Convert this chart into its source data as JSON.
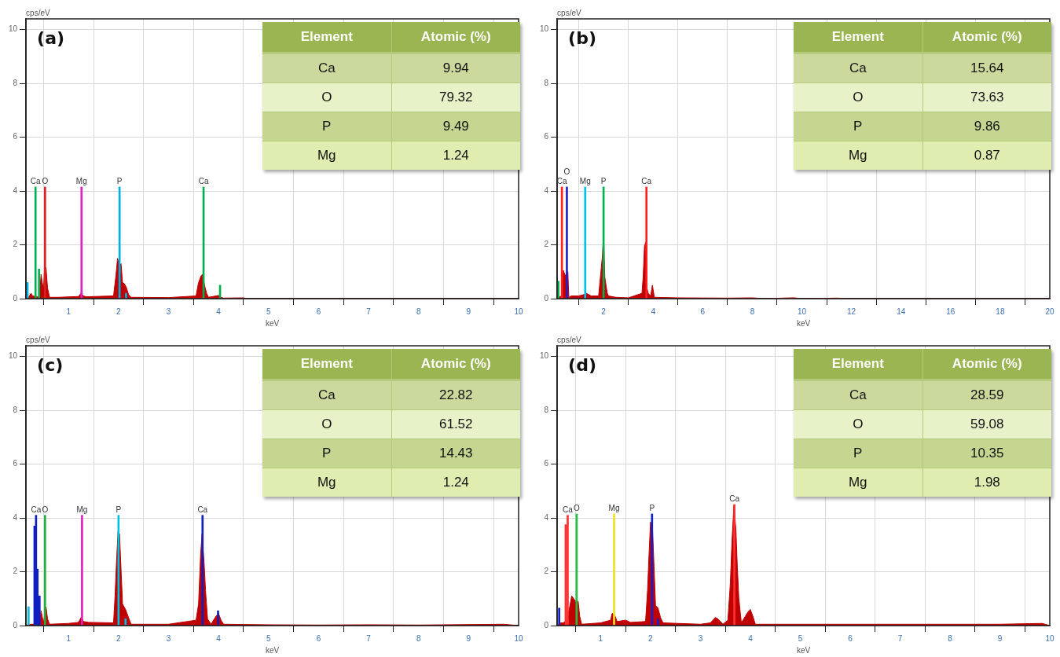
{
  "chart_data": [
    {
      "type": "area",
      "title": "(a)",
      "xlabel": "keV",
      "ylabel": "cps/eV",
      "xlim": [
        0.15,
        10
      ],
      "ylim": [
        0,
        10.4
      ],
      "xticks": [
        1,
        2,
        3,
        4,
        5,
        6,
        7,
        8,
        9,
        10
      ],
      "yticks": [
        0,
        2,
        4,
        6,
        8,
        10
      ],
      "grid": true,
      "annotations": [
        "Element",
        "Atomic (%)",
        "Ca",
        "9.94",
        "O",
        "79.32",
        "P",
        "9.49",
        "Mg",
        "1.24"
      ],
      "series": [
        {
          "color": "#c00000",
          "x": [
            0.15,
            0.2,
            0.25,
            0.28,
            0.42,
            0.45,
            0.5,
            0.52,
            0.55,
            0.58,
            0.62,
            0.8,
            1.2,
            1.25,
            1.3,
            1.35,
            1.9,
            1.95,
            1.98,
            2.02,
            2.05,
            2.08,
            2.12,
            2.16,
            2.2,
            2.25,
            3.0,
            3.55,
            3.6,
            3.65,
            3.68,
            3.72,
            3.76,
            3.8,
            3.95,
            4.0,
            4.05,
            4.1,
            4.5,
            4.55,
            5,
            10
          ],
          "values": [
            0,
            0.05,
            0.2,
            0.1,
            0.05,
            0.9,
            0.3,
            1.15,
            1.15,
            0.4,
            0.05,
            0.05,
            0.08,
            0.2,
            0.1,
            0.07,
            0.1,
            0.9,
            1.5,
            1.2,
            1.3,
            0.6,
            0.55,
            0.4,
            0.15,
            0.05,
            0.04,
            0.1,
            0.6,
            0.85,
            0.9,
            0.5,
            0.2,
            0.05,
            0.1,
            0.12,
            0.05,
            0.02,
            0.03,
            0,
            0,
            0
          ]
        },
        {
          "type": "bar",
          "name": "Ca",
          "color": "#00b050",
          "x": [
            0.34
          ],
          "values": [
            4.15
          ]
        },
        {
          "type": "bar",
          "name": "O",
          "color": "#e02020",
          "x": [
            0.53
          ],
          "values": [
            4.15
          ]
        },
        {
          "type": "bar",
          "name": "Mg",
          "color": "#e020c0",
          "x": [
            1.26
          ],
          "values": [
            4.15
          ]
        },
        {
          "type": "bar",
          "name": "P",
          "color": "#00b0e0",
          "x": [
            2.02
          ],
          "values": [
            4.15
          ]
        },
        {
          "type": "bar",
          "name": "Ca",
          "color": "#00b050",
          "x": [
            3.7
          ],
          "values": [
            4.15
          ]
        },
        {
          "type": "bar",
          "color": "#00b050",
          "x": [
            0.41,
            4.03
          ],
          "values": [
            1.1,
            0.5
          ]
        },
        {
          "type": "bar",
          "color": "#00b0e0",
          "x": [
            0.18,
            2.15
          ],
          "values": [
            0.6,
            0.2
          ]
        }
      ]
    },
    {
      "type": "area",
      "title": "(b)",
      "xlabel": "keV",
      "ylabel": "cps/eV",
      "xlim": [
        0.13,
        20
      ],
      "ylim": [
        0,
        10.4
      ],
      "xticks": [
        2,
        4,
        6,
        8,
        10,
        12,
        14,
        16,
        18,
        20
      ],
      "yticks": [
        0,
        2,
        4,
        6,
        8,
        10
      ],
      "grid": true,
      "annotations": [
        "Element",
        "Atomic (%)",
        "Ca",
        "15.64",
        "O",
        "73.63",
        "P",
        "9.86",
        "Mg",
        "0.87"
      ],
      "series": [
        {
          "color": "#c00000",
          "x": [
            0.13,
            0.2,
            0.3,
            0.38,
            0.45,
            0.56,
            0.6,
            0.7,
            1.0,
            1.2,
            1.3,
            1.5,
            1.8,
            1.95,
            2.0,
            2.05,
            2.1,
            2.15,
            2.2,
            2.5,
            3.0,
            3.55,
            3.6,
            3.65,
            3.7,
            3.75,
            3.8,
            3.9,
            3.97,
            4.05,
            5,
            7,
            8,
            8.5,
            9.6,
            9.7,
            10,
            11.4,
            12,
            20
          ],
          "values": [
            0,
            0.05,
            0.1,
            1.05,
            0.85,
            1.0,
            0.05,
            0.1,
            0.1,
            0.15,
            0.2,
            0.1,
            0.1,
            1.55,
            2.35,
            0.8,
            0.5,
            0.2,
            0.1,
            0.05,
            0.03,
            0.2,
            0.85,
            1.95,
            2.1,
            0.4,
            0.2,
            0.1,
            0.5,
            0.05,
            0.03,
            0.02,
            0.03,
            0,
            0.03,
            0.03,
            0,
            0.02,
            0,
            0
          ]
        },
        {
          "type": "bar",
          "name": "Ca",
          "color": "#ff2020",
          "x": [
            0.32
          ],
          "values": [
            4.15
          ]
        },
        {
          "type": "bar",
          "name": "O",
          "color": "#2020d0",
          "x": [
            0.52
          ],
          "values": [
            4.15
          ]
        },
        {
          "type": "bar",
          "name": "Mg",
          "color": "#00c0e0",
          "x": [
            1.26
          ],
          "values": [
            4.15
          ]
        },
        {
          "type": "bar",
          "name": "P",
          "color": "#00b050",
          "x": [
            2.0
          ],
          "values": [
            4.15
          ]
        },
        {
          "type": "bar",
          "name": "Ca",
          "color": "#ff2020",
          "x": [
            3.73
          ],
          "values": [
            4.15
          ]
        },
        {
          "type": "bar",
          "color": "#00b050",
          "x": [
            0.18
          ],
          "values": [
            0.65
          ]
        }
      ]
    },
    {
      "type": "area",
      "title": "(c)",
      "xlabel": "keV",
      "ylabel": "cps/eV",
      "xlim": [
        0.15,
        10
      ],
      "ylim": [
        0,
        10.4
      ],
      "xticks": [
        1,
        2,
        3,
        4,
        5,
        6,
        7,
        8,
        9,
        10
      ],
      "yticks": [
        0,
        2,
        4,
        6,
        8,
        10
      ],
      "grid": true,
      "annotations": [
        "Element",
        "Atomic (%)",
        "Ca",
        "22.82",
        "O",
        "61.52",
        "P",
        "14.43",
        "Mg",
        "1.24"
      ],
      "series": [
        {
          "color": "#c00000",
          "x": [
            0.15,
            0.25,
            0.42,
            0.45,
            0.5,
            0.55,
            0.58,
            0.62,
            1.0,
            1.2,
            1.25,
            1.3,
            1.4,
            1.9,
            1.93,
            1.96,
            1.99,
            2.02,
            2.05,
            2.08,
            2.14,
            2.2,
            2.25,
            3.0,
            3.55,
            3.6,
            3.64,
            3.67,
            3.71,
            3.74,
            3.78,
            3.85,
            3.95,
            4.0,
            4.05,
            4.1,
            5,
            6,
            7,
            8,
            9.7,
            10
          ],
          "values": [
            0,
            0.05,
            0.05,
            0.55,
            0.1,
            0.7,
            0.25,
            0.05,
            0.08,
            0.12,
            0.3,
            0.15,
            0.12,
            0.1,
            1.1,
            2.4,
            3.5,
            3.4,
            2.1,
            0.8,
            0.6,
            0.3,
            0.05,
            0.05,
            0.2,
            0.8,
            2.6,
            3.4,
            2.35,
            1.3,
            0.25,
            0.05,
            0.35,
            0.45,
            0.2,
            0.05,
            0.03,
            0.02,
            0.03,
            0.02,
            0.05,
            0
          ]
        },
        {
          "type": "bar",
          "name": "Ca",
          "color": "#1020c0",
          "x": [
            0.35
          ],
          "values": [
            4.1
          ]
        },
        {
          "type": "bar",
          "name": "O",
          "color": "#20b040",
          "x": [
            0.53
          ],
          "values": [
            4.1
          ]
        },
        {
          "type": "bar",
          "name": "Mg",
          "color": "#e020c0",
          "x": [
            1.27
          ],
          "values": [
            4.1
          ]
        },
        {
          "type": "bar",
          "name": "P",
          "color": "#00c0e0",
          "x": [
            2.0
          ],
          "values": [
            4.1
          ]
        },
        {
          "type": "bar",
          "name": "Ca",
          "color": "#1020c0",
          "x": [
            3.68
          ],
          "values": [
            4.1
          ]
        },
        {
          "type": "bar",
          "color": "#1020c0",
          "x": [
            0.32,
            0.38,
            0.42,
            3.99
          ],
          "values": [
            3.7,
            2.1,
            1.1,
            0.55
          ]
        },
        {
          "type": "bar",
          "color": "#00c0e0",
          "x": [
            0.2,
            2.14
          ],
          "values": [
            0.7,
            0.25
          ]
        }
      ]
    },
    {
      "type": "area",
      "title": "(d)",
      "xlabel": "keV",
      "ylabel": "cps/eV",
      "xlim": [
        0.13,
        10
      ],
      "ylim": [
        0,
        10.4
      ],
      "xticks": [
        1,
        2,
        3,
        4,
        5,
        6,
        7,
        8,
        9,
        10
      ],
      "yticks": [
        0,
        2,
        4,
        6,
        8,
        10
      ],
      "grid": true,
      "annotations": [
        "Element",
        "Atomic (%)",
        "Ca",
        "28.59",
        "O",
        "59.08",
        "P",
        "10.35",
        "Mg",
        "1.98"
      ],
      "series": [
        {
          "color": "#c00000",
          "x": [
            0.13,
            0.2,
            0.25,
            0.33,
            0.42,
            0.5,
            0.55,
            0.58,
            0.62,
            1.0,
            1.2,
            1.23,
            1.28,
            1.33,
            1.5,
            1.6,
            1.9,
            1.94,
            1.97,
            2.0,
            2.04,
            2.07,
            2.1,
            2.15,
            2.2,
            2.25,
            3.0,
            3.2,
            3.3,
            3.35,
            3.45,
            3.55,
            3.6,
            3.63,
            3.67,
            3.71,
            3.74,
            3.77,
            3.82,
            3.95,
            4.0,
            4.05,
            4.1,
            5,
            7,
            9,
            9.85,
            10
          ],
          "values": [
            0,
            0.1,
            0.1,
            0.2,
            1.1,
            0.9,
            0.9,
            0.35,
            0.05,
            0.1,
            0.2,
            0.45,
            0.4,
            0.15,
            0.2,
            0.12,
            0.15,
            1.3,
            2.65,
            3.85,
            3.6,
            2.2,
            0.75,
            0.65,
            0.3,
            0.1,
            0.05,
            0.1,
            0.3,
            0.25,
            0.05,
            0.2,
            1.6,
            3.05,
            4.45,
            3.6,
            2.15,
            1.0,
            0.1,
            0.5,
            0.6,
            0.35,
            0.05,
            0.05,
            0.05,
            0.05,
            0.08,
            0
          ]
        },
        {
          "type": "bar",
          "name": "Ca",
          "color": "#ff3030",
          "x": [
            0.34
          ],
          "values": [
            4.1
          ]
        },
        {
          "type": "bar",
          "name": "O",
          "color": "#20c040",
          "x": [
            0.52
          ],
          "values": [
            4.15
          ]
        },
        {
          "type": "bar",
          "name": "Mg",
          "color": "#f0e020",
          "x": [
            1.27
          ],
          "values": [
            4.15
          ]
        },
        {
          "type": "bar",
          "name": "P",
          "color": "#1020d0",
          "x": [
            2.03
          ],
          "values": [
            4.15
          ]
        },
        {
          "type": "bar",
          "name": "Ca",
          "color": "#ff3030",
          "x": [
            3.68
          ],
          "values": [
            4.5
          ]
        },
        {
          "type": "bar",
          "color": "#ff3030",
          "x": [
            0.3
          ],
          "values": [
            3.75
          ]
        },
        {
          "type": "bar",
          "color": "#1020d0",
          "x": [
            0.17,
            2.15
          ],
          "values": [
            0.65,
            0.25
          ]
        }
      ]
    }
  ]
}
